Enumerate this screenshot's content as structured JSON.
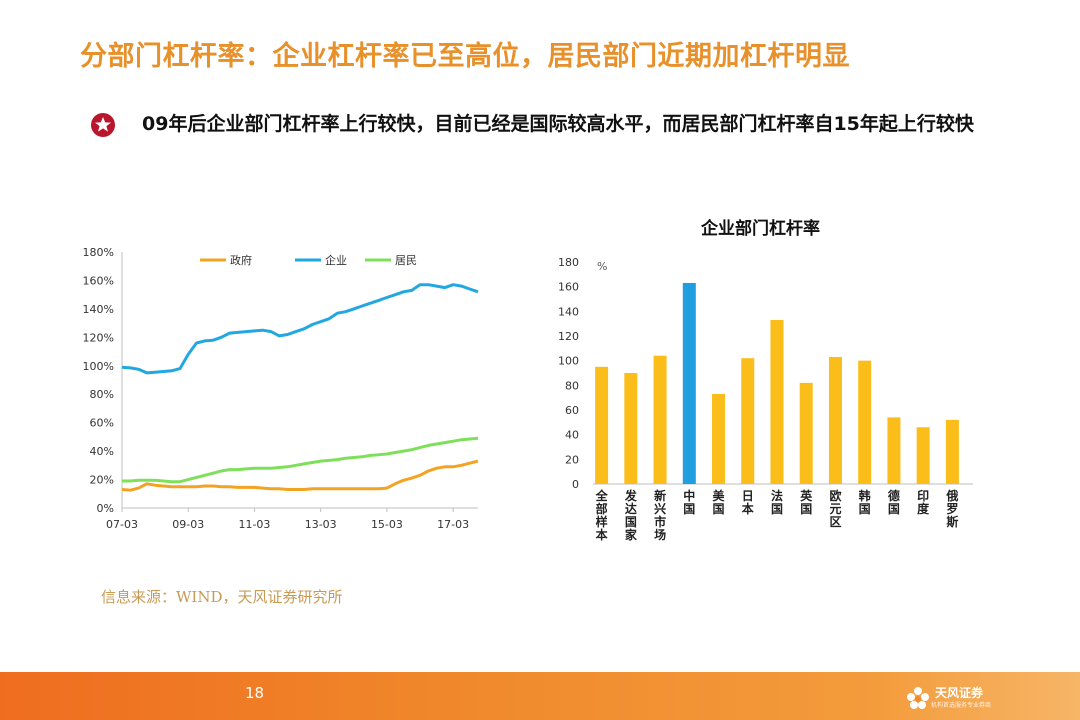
{
  "slide": {
    "title": "分部门杠杆率：企业杠杆率已至高位，居民部门近期加杠杆明显",
    "bullet": "09年后企业部门杠杆率上行较快，目前已经是国际较高水平，而居民部门杠杆率自15年起上行较快",
    "source": "信息来源：WIND，天风证券研究所",
    "page_number": "18",
    "logo_text": "天风证券",
    "logo_subtext": "机构首选服务专业券商",
    "accent_color": "#e8902a"
  },
  "chart_data": [
    {
      "type": "line",
      "xlabel": "",
      "ylabel": "",
      "x_tick_labels": [
        "07-03",
        "09-03",
        "11-03",
        "13-03",
        "15-03",
        "17-03"
      ],
      "y_tick_labels": [
        "0%",
        "20%",
        "40%",
        "60%",
        "80%",
        "100%",
        "120%",
        "140%",
        "160%",
        "180%"
      ],
      "ylim": [
        0,
        180
      ],
      "legend_position": "top",
      "grid": false,
      "x_quarters": [
        "2007Q1",
        "2007Q2",
        "2007Q3",
        "2007Q4",
        "2008Q1",
        "2008Q2",
        "2008Q3",
        "2008Q4",
        "2009Q1",
        "2009Q2",
        "2009Q3",
        "2009Q4",
        "2010Q1",
        "2010Q2",
        "2010Q3",
        "2010Q4",
        "2011Q1",
        "2011Q2",
        "2011Q3",
        "2011Q4",
        "2012Q1",
        "2012Q2",
        "2012Q3",
        "2012Q4",
        "2013Q1",
        "2013Q2",
        "2013Q3",
        "2013Q4",
        "2014Q1",
        "2014Q2",
        "2014Q3",
        "2014Q4",
        "2015Q1",
        "2015Q2",
        "2015Q3",
        "2015Q4",
        "2016Q1",
        "2016Q2",
        "2016Q3",
        "2016Q4",
        "2017Q1",
        "2017Q2",
        "2017Q3",
        "2017Q4"
      ],
      "series": [
        {
          "name": "政府",
          "color": "#f3a321",
          "values": [
            13,
            12.5,
            14,
            17,
            16,
            15.5,
            15,
            15,
            15,
            15,
            15.5,
            15.5,
            15,
            15,
            14.5,
            14.5,
            14.5,
            14,
            13.5,
            13.5,
            13,
            13,
            13,
            13.5,
            13.5,
            13.5,
            13.5,
            13.5,
            13.5,
            13.5,
            13.5,
            13.5,
            14,
            17,
            19.5,
            21,
            23,
            26,
            28,
            29,
            29,
            30,
            31.5,
            33
          ]
        },
        {
          "name": "企业",
          "color": "#22a7e0",
          "values": [
            99,
            98.5,
            97.5,
            95,
            95.5,
            96,
            96.5,
            98,
            108,
            116,
            117.5,
            118,
            120,
            123,
            123.5,
            124,
            124.5,
            125,
            124,
            121,
            122,
            124,
            126,
            129,
            131,
            133,
            137,
            138,
            140,
            142,
            144,
            146,
            148,
            150,
            152,
            153,
            157,
            157,
            156,
            155,
            157,
            156,
            154,
            152
          ]
        },
        {
          "name": "居民",
          "color": "#7ee05a",
          "values": [
            19,
            19,
            19.5,
            19.5,
            19.5,
            19,
            18.5,
            18.5,
            20,
            21.5,
            23,
            24.5,
            26,
            27,
            27,
            27.5,
            28,
            28,
            28,
            28.5,
            29,
            30,
            31,
            32,
            33,
            33.5,
            34,
            35,
            35.5,
            36,
            37,
            37.5,
            38,
            39,
            40,
            41,
            42.5,
            44,
            45,
            46,
            47,
            48,
            48.5,
            49
          ]
        }
      ]
    },
    {
      "type": "bar",
      "title": "企业部门杠杆率",
      "ylabel": "%",
      "ylim": [
        0,
        180
      ],
      "y_tick_labels": [
        "0",
        "20",
        "40",
        "60",
        "80",
        "100",
        "120",
        "140",
        "160",
        "180"
      ],
      "grid": false,
      "categories": [
        "全部样本",
        "发达国家",
        "新兴市场",
        "中国",
        "美国",
        "日本",
        "法国",
        "英国",
        "欧元区",
        "韩国",
        "德国",
        "印度",
        "俄罗斯"
      ],
      "values": [
        95,
        90,
        104,
        163,
        73,
        102,
        133,
        82,
        103,
        100,
        54,
        46,
        52
      ],
      "colors": {
        "default": "#fbbd19",
        "highlight": "#1f9fe0"
      },
      "highlight_category": "中国"
    }
  ]
}
